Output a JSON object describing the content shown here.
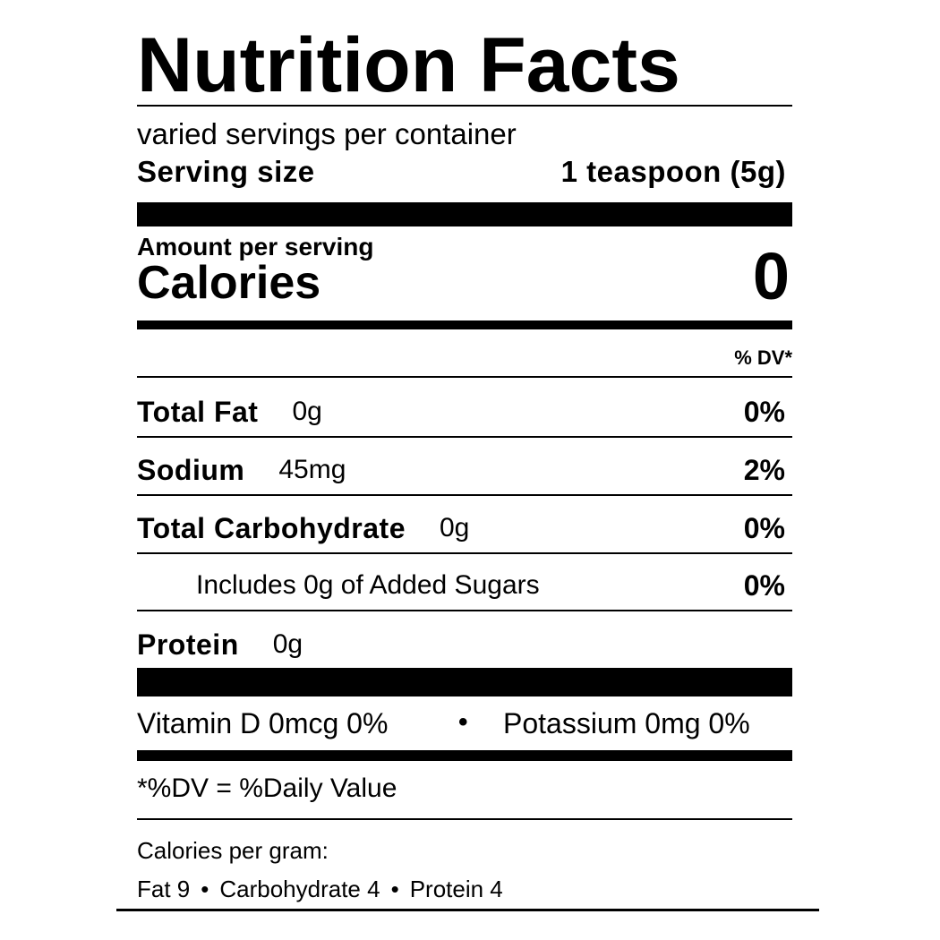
{
  "header": {
    "title": "Nutrition Facts",
    "servings_per_container": "varied servings per container",
    "serving_size_label": "Serving size",
    "serving_size_value": "1 teaspoon (5g)"
  },
  "calories": {
    "amount_per_serving": "Amount per serving",
    "label": "Calories",
    "value": "0"
  },
  "dv_header": "% DV*",
  "nutrients": [
    {
      "name": "Total Fat",
      "amount": "0g",
      "dv": "0%"
    },
    {
      "name": "Sodium",
      "amount": "45mg",
      "dv": "2%"
    },
    {
      "name": "Total Carbohydrate",
      "amount": "0g",
      "dv": "0%"
    },
    {
      "sub": "Includes 0g of Added Sugars",
      "dv": "0%"
    },
    {
      "name": "Protein",
      "amount": "0g"
    }
  ],
  "separator": "•",
  "vitamins": [
    "Vitamin D 0mcg 0%",
    "Potassium 0mg 0%"
  ],
  "footnote": "*%DV = %Daily Value",
  "calories_per_gram": {
    "title": "Calories per gram:",
    "items": [
      "Fat 9",
      "Carbohydrate 4",
      "Protein 4"
    ]
  }
}
